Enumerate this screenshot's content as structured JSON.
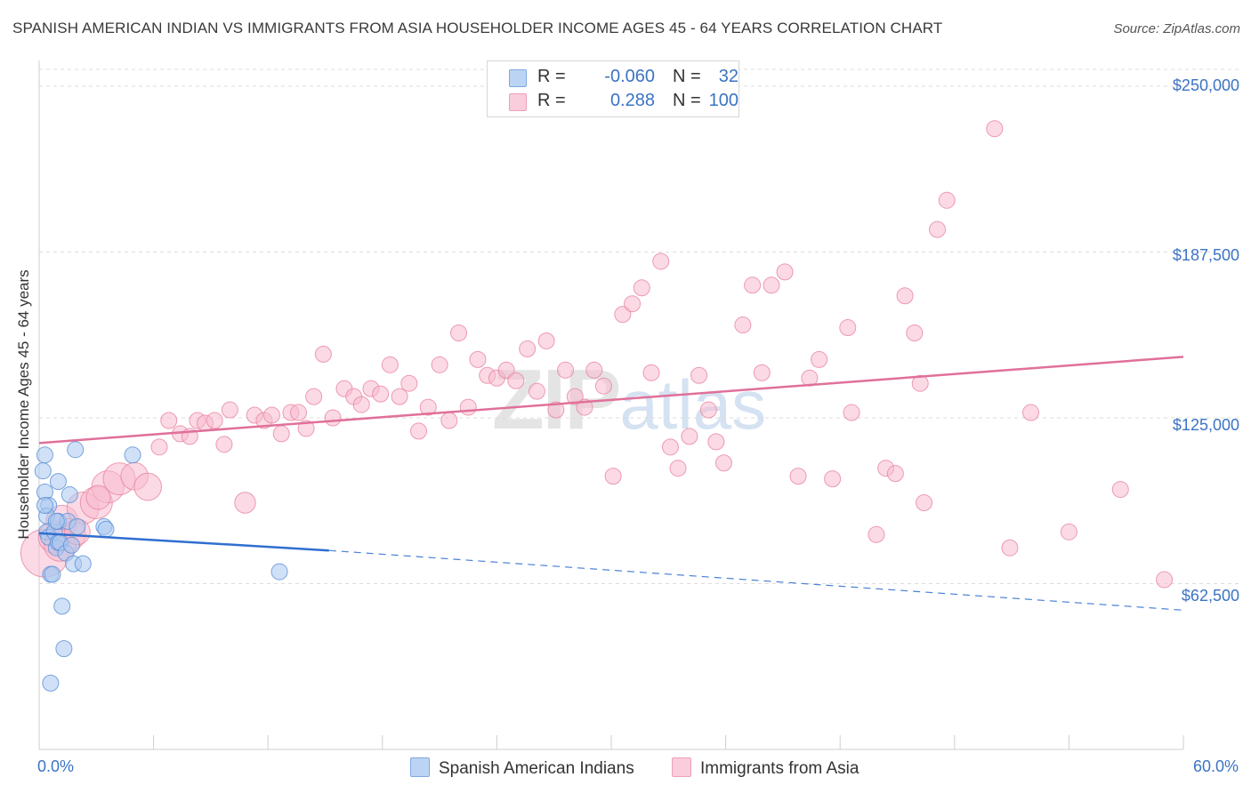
{
  "title": "SPANISH AMERICAN INDIAN VS IMMIGRANTS FROM ASIA HOUSEHOLDER INCOME AGES 45 - 64 YEARS CORRELATION CHART",
  "source": "Source: ZipAtlas.com",
  "watermark": {
    "zip": "ZIP",
    "atlas": "atlas"
  },
  "legend": {
    "rows": [
      {
        "r_label": "R =",
        "r_value": "-0.060",
        "n_label": "N =",
        "n_value": "32",
        "color": "#a9c8f0"
      },
      {
        "r_label": "R =",
        "r_value": "0.288",
        "n_label": "N =",
        "n_value": "100",
        "color": "#f7bcd0"
      }
    ]
  },
  "bottom_legend": {
    "items": [
      {
        "label": "Spanish American Indians",
        "color": "#a9c8f0"
      },
      {
        "label": "Immigrants from Asia",
        "color": "#f7bcd0"
      }
    ]
  },
  "chart_data": {
    "type": "scatter",
    "title": "SPANISH AMERICAN INDIAN VS IMMIGRANTS FROM ASIA HOUSEHOLDER INCOME AGES 45 - 64 YEARS CORRELATION CHART",
    "xlabel": "",
    "ylabel": "Householder Income Ages 45 - 64 years",
    "xlim": [
      0,
      60
    ],
    "ylim": [
      0,
      262500
    ],
    "x_tick_labels": [
      "0.0%",
      "60.0%"
    ],
    "y_tick_labels": [
      "$250,000",
      "$187,500",
      "$125,000",
      "$62,500"
    ],
    "y_tick_values": [
      250000,
      187500,
      125000,
      62500
    ],
    "grid": true,
    "legend_position": "top-center",
    "series": [
      {
        "name": "Spanish American Indians",
        "color": "#a9c8f0",
        "stroke": "#5b8fd6",
        "points": [
          [
            0.2,
            105000,
            1
          ],
          [
            0.3,
            97000,
            1
          ],
          [
            0.5,
            92000,
            1
          ],
          [
            0.4,
            88000,
            1
          ],
          [
            0.4,
            82000,
            1
          ],
          [
            0.5,
            80000,
            1
          ],
          [
            0.6,
            66000,
            1
          ],
          [
            0.7,
            66000,
            1
          ],
          [
            0.8,
            82000,
            1
          ],
          [
            0.9,
            76000,
            1
          ],
          [
            1.0,
            101000,
            1
          ],
          [
            1.0,
            86000,
            1
          ],
          [
            1.0,
            78000,
            1
          ],
          [
            1.1,
            78000,
            1
          ],
          [
            1.2,
            54000,
            1
          ],
          [
            1.3,
            38000,
            1
          ],
          [
            1.4,
            74000,
            1
          ],
          [
            1.5,
            86000,
            1
          ],
          [
            1.6,
            96000,
            1
          ],
          [
            1.7,
            77000,
            1
          ],
          [
            1.8,
            70000,
            1
          ],
          [
            1.9,
            113000,
            1
          ],
          [
            2.0,
            84000,
            1
          ],
          [
            2.3,
            70000,
            1
          ],
          [
            3.4,
            84000,
            1
          ],
          [
            3.5,
            83000,
            1
          ],
          [
            4.9,
            111000,
            1
          ],
          [
            12.6,
            67000,
            1
          ],
          [
            0.6,
            25000,
            1
          ],
          [
            0.3,
            111000,
            1
          ],
          [
            0.9,
            86000,
            1
          ],
          [
            0.3,
            92000,
            1
          ]
        ]
      },
      {
        "name": "Immigrants from Asia",
        "color": "#f7bcd0",
        "stroke": "#e8859f",
        "points": [
          [
            0.3,
            74000,
            3
          ],
          [
            0.8,
            80000,
            2
          ],
          [
            1.2,
            86000,
            2
          ],
          [
            1.6,
            81000,
            2
          ],
          [
            2.3,
            91000,
            2
          ],
          [
            3.0,
            93000,
            2
          ],
          [
            3.6,
            99000,
            2
          ],
          [
            4.2,
            102000,
            2
          ],
          [
            5.0,
            103000,
            1.7
          ],
          [
            5.7,
            99000,
            1.7
          ],
          [
            6.3,
            114000,
            1
          ],
          [
            6.8,
            124000,
            1
          ],
          [
            7.4,
            119000,
            1
          ],
          [
            7.9,
            118000,
            1
          ],
          [
            8.3,
            124000,
            1
          ],
          [
            8.7,
            123000,
            1
          ],
          [
            9.2,
            124000,
            1
          ],
          [
            9.7,
            115000,
            1
          ],
          [
            10.0,
            128000,
            1
          ],
          [
            10.8,
            93000,
            1.3
          ],
          [
            11.3,
            126000,
            1
          ],
          [
            11.8,
            124000,
            1
          ],
          [
            12.2,
            126000,
            1
          ],
          [
            12.7,
            119000,
            1
          ],
          [
            13.2,
            127000,
            1
          ],
          [
            13.6,
            127000,
            1
          ],
          [
            14.0,
            121000,
            1
          ],
          [
            14.4,
            133000,
            1
          ],
          [
            14.9,
            149000,
            1
          ],
          [
            15.4,
            125000,
            1
          ],
          [
            16.0,
            136000,
            1
          ],
          [
            16.5,
            133000,
            1
          ],
          [
            16.9,
            130000,
            1
          ],
          [
            17.4,
            136000,
            1
          ],
          [
            17.9,
            134000,
            1
          ],
          [
            18.4,
            145000,
            1
          ],
          [
            18.9,
            133000,
            1
          ],
          [
            19.4,
            138000,
            1
          ],
          [
            19.9,
            120000,
            1
          ],
          [
            20.4,
            129000,
            1
          ],
          [
            21.0,
            145000,
            1
          ],
          [
            21.5,
            124000,
            1
          ],
          [
            22.0,
            157000,
            1
          ],
          [
            22.5,
            129000,
            1
          ],
          [
            23.0,
            147000,
            1
          ],
          [
            23.5,
            141000,
            1
          ],
          [
            24.0,
            140000,
            1
          ],
          [
            24.5,
            143000,
            1
          ],
          [
            25.0,
            139000,
            1
          ],
          [
            25.6,
            151000,
            1
          ],
          [
            26.1,
            135000,
            1
          ],
          [
            26.6,
            154000,
            1
          ],
          [
            27.1,
            128000,
            1
          ],
          [
            27.6,
            143000,
            1
          ],
          [
            28.1,
            133000,
            1
          ],
          [
            28.6,
            129000,
            1
          ],
          [
            29.1,
            143000,
            1
          ],
          [
            29.6,
            137000,
            1
          ],
          [
            30.1,
            103000,
            1
          ],
          [
            30.6,
            164000,
            1
          ],
          [
            31.1,
            168000,
            1
          ],
          [
            31.6,
            174000,
            1
          ],
          [
            32.1,
            142000,
            1
          ],
          [
            32.6,
            184000,
            1
          ],
          [
            33.1,
            114000,
            1
          ],
          [
            33.5,
            106000,
            1
          ],
          [
            34.1,
            118000,
            1
          ],
          [
            34.6,
            141000,
            1
          ],
          [
            35.1,
            128000,
            1
          ],
          [
            35.5,
            116000,
            1
          ],
          [
            35.9,
            108000,
            1
          ],
          [
            36.9,
            160000,
            1
          ],
          [
            37.4,
            175000,
            1
          ],
          [
            37.9,
            142000,
            1
          ],
          [
            38.4,
            175000,
            1
          ],
          [
            39.1,
            180000,
            1
          ],
          [
            39.8,
            103000,
            1
          ],
          [
            40.4,
            140000,
            1
          ],
          [
            40.9,
            147000,
            1
          ],
          [
            41.6,
            102000,
            1
          ],
          [
            42.4,
            159000,
            1
          ],
          [
            42.6,
            127000,
            1
          ],
          [
            43.9,
            81000,
            1
          ],
          [
            44.4,
            106000,
            1
          ],
          [
            44.9,
            104000,
            1
          ],
          [
            45.4,
            171000,
            1
          ],
          [
            45.9,
            157000,
            1
          ],
          [
            46.2,
            138000,
            1
          ],
          [
            46.4,
            93000,
            1
          ],
          [
            47.1,
            196000,
            1
          ],
          [
            47.6,
            207000,
            1
          ],
          [
            50.1,
            234000,
            1
          ],
          [
            50.9,
            76000,
            1
          ],
          [
            52.0,
            127000,
            1
          ],
          [
            54.0,
            82000,
            1
          ],
          [
            56.7,
            98000,
            1
          ],
          [
            59.0,
            64000,
            1
          ],
          [
            1.1,
            77000,
            2
          ],
          [
            2.0,
            82000,
            1.6
          ],
          [
            3.1,
            95000,
            1.5
          ]
        ]
      }
    ],
    "trend_lines": [
      {
        "series": "Spanish American Indians",
        "x": [
          0,
          15.2
        ],
        "y": [
          81500,
          75000
        ],
        "dashed_extension_x": [
          15.2,
          60
        ],
        "dashed_extension_y": [
          75000,
          52500
        ]
      },
      {
        "series": "Immigrants from Asia",
        "x": [
          0,
          60
        ],
        "y": [
          115500,
          148000
        ]
      }
    ]
  }
}
